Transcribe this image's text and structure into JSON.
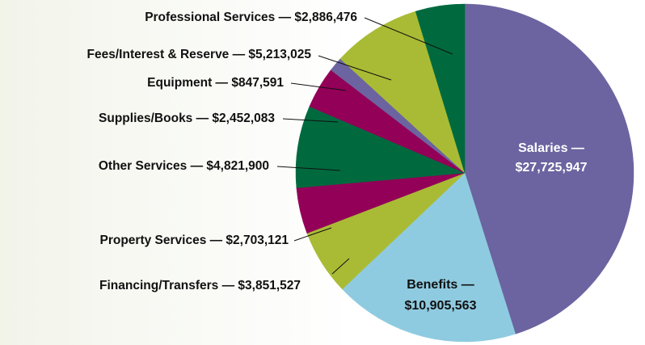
{
  "chart_data": {
    "type": "pie",
    "title": "",
    "slices": [
      {
        "label": "Salaries",
        "value": 27725947,
        "display": "Salaries —",
        "display2": "$27,725,947",
        "color": "#6b64a0",
        "label_color": "#ffffff"
      },
      {
        "label": "Benefits",
        "value": 10905563,
        "display": "Benefits —",
        "display2": "$10,905,563",
        "color": "#8fcbe0",
        "label_color": "#111111"
      },
      {
        "label": "Financing/Transfers",
        "value": 3851527,
        "display": "Financing/Transfers — $3,851,527",
        "color": "#a9bb35",
        "label_color": "#111111"
      },
      {
        "label": "Property Services",
        "value": 2703121,
        "display": "Property Services — $2,703,121",
        "color": "#930057",
        "label_color": "#111111"
      },
      {
        "label": "Other Services",
        "value": 4821900,
        "display": "Other Services — $4,821,900",
        "color": "#006a3e",
        "label_color": "#111111"
      },
      {
        "label": "Supplies/Books",
        "value": 2452083,
        "display": "Supplies/Books — $2,452,083",
        "color": "#930057",
        "label_color": "#111111"
      },
      {
        "label": "Equipment",
        "value": 847591,
        "display": "Equipment — $847,591",
        "color": "#6b64a0",
        "label_color": "#111111"
      },
      {
        "label": "Fees/Interest & Reserve",
        "value": 5213025,
        "display": "Fees/Interest & Reserve — $5,213,025",
        "color": "#a9bb35",
        "label_color": "#111111"
      },
      {
        "label": "Professional Services",
        "value": 2886476,
        "display": "Professional Services — $2,886,476",
        "color": "#006a3e",
        "label_color": "#111111"
      }
    ],
    "start": "12 o'clock",
    "direction": "clockwise",
    "legend": "none",
    "labels": "outside with leader lines; Salaries and Benefits inside"
  }
}
